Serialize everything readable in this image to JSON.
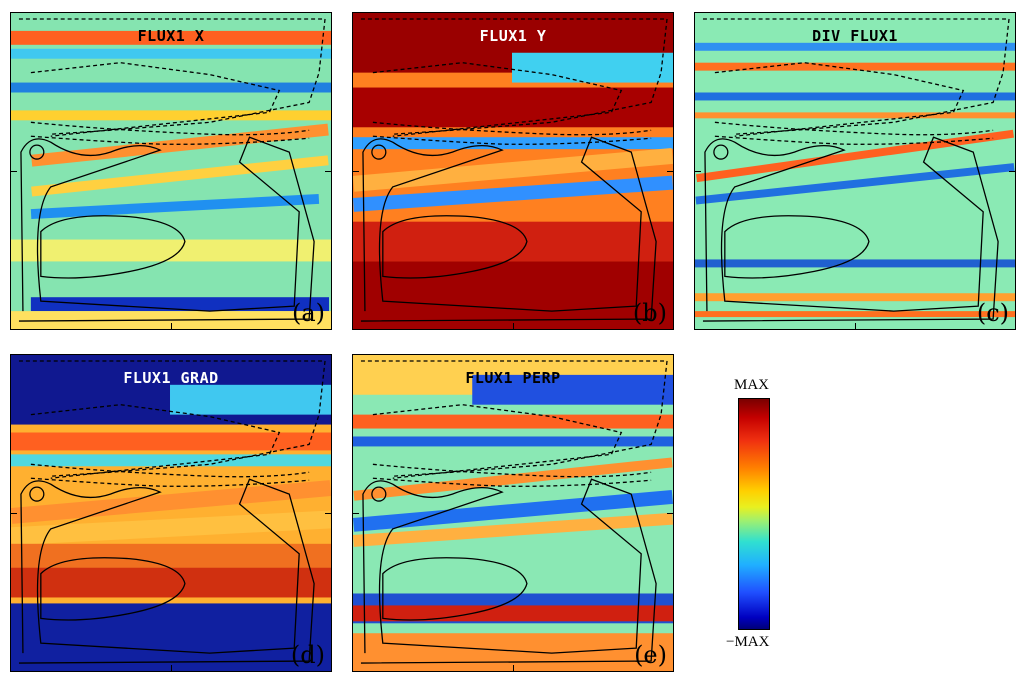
{
  "panels": [
    {
      "id": "a",
      "title": "FLUX1 X",
      "label": "(a)",
      "base": "#7fe6a8",
      "title_light": false
    },
    {
      "id": "b",
      "title": "FLUX1 Y",
      "label": "(b)",
      "base": "#ff7a10",
      "title_light": true
    },
    {
      "id": "c",
      "title": "DIV FLUX1",
      "label": "(c)",
      "base": "#86ecb0",
      "title_light": false
    },
    {
      "id": "d",
      "title": "FLUX1 GRAD",
      "label": "(d)",
      "base": "#ffb020",
      "title_light": true
    },
    {
      "id": "e",
      "title": "FLUX1 PERP",
      "label": "(e)",
      "base": "#8ae6b0",
      "title_light": false
    }
  ],
  "colorbar": {
    "max_label": "MAX",
    "min_label": "−MAX",
    "colors": [
      "#7a0000",
      "#c40000",
      "#ff8000",
      "#ffd000",
      "#9ef070",
      "#30e0d0",
      "#20b0ff",
      "#0000c0"
    ]
  }
}
